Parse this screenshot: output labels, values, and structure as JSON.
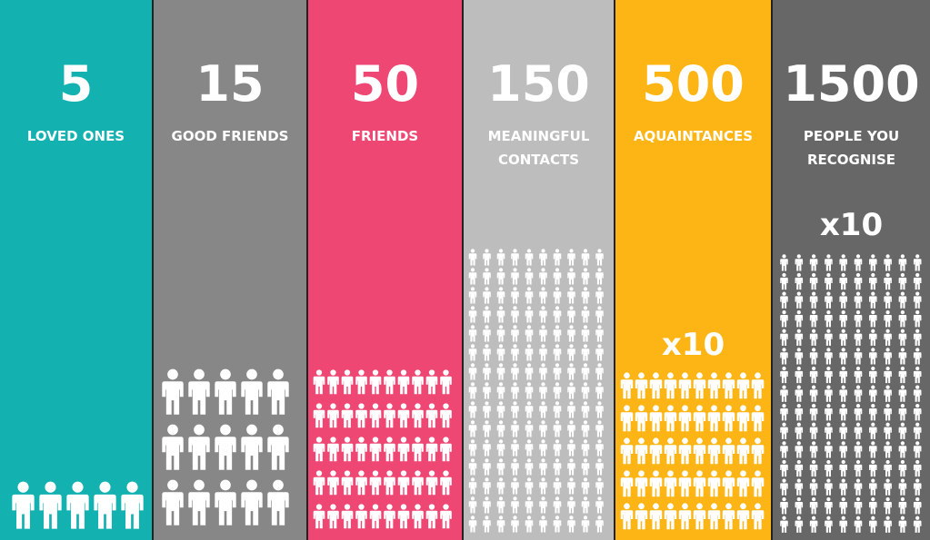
{
  "columns": [
    {
      "number": "5",
      "label": "LOVED ONES",
      "color": "#13b1b0"
    },
    {
      "number": "15",
      "label": "GOOD FRIENDS",
      "color": "#878787"
    },
    {
      "number": "50",
      "label": "FRIENDS",
      "color": "#ef4773"
    },
    {
      "number": "150",
      "label": "MEANINGFUL CONTACTS",
      "color": "#bdbdbd"
    },
    {
      "number": "500",
      "label": "AQUAINTANCES",
      "multiplier": "x10",
      "color": "#fdb515"
    },
    {
      "number": "1500",
      "label": "PEOPLE YOU RECOGNISE",
      "multiplier": "x10",
      "color": "#676767"
    }
  ]
}
